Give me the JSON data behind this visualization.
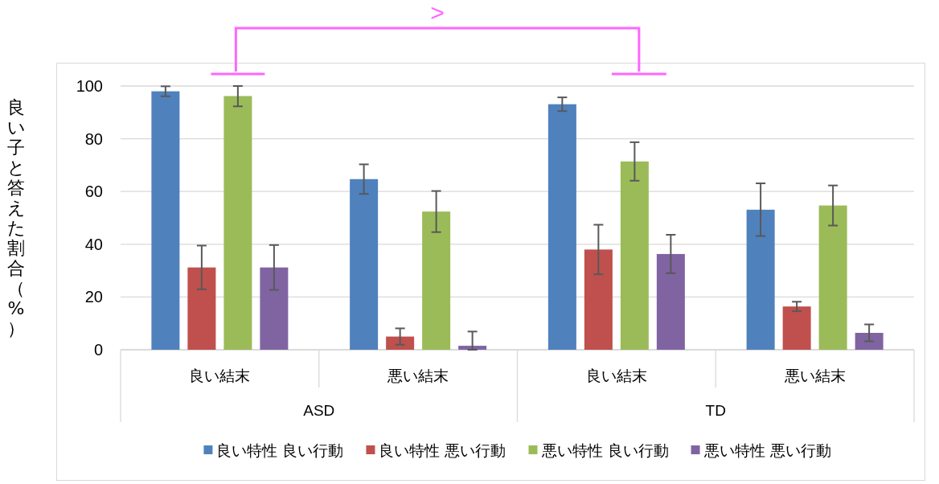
{
  "chart_data": {
    "type": "bar",
    "ylabel": "良い子と答えた割合（%）",
    "categories": [
      "良い結末",
      "悪い結末",
      "良い結末",
      "悪い結末"
    ],
    "series": [
      {
        "name": "良い特性 良い行動",
        "color": "#4f81bd",
        "values": [
          98.0,
          64.7,
          93.1,
          53.1
        ],
        "errors": [
          1.9,
          5.6,
          2.6,
          10.0
        ]
      },
      {
        "name": "良い特性 悪い行動",
        "color": "#c0504d",
        "values": [
          31.2,
          5.0,
          38.0,
          16.4
        ],
        "errors": [
          8.3,
          3.1,
          9.4,
          1.8
        ]
      },
      {
        "name": "悪い特性 良い行動",
        "color": "#9bbb59",
        "values": [
          96.2,
          52.4,
          71.4,
          54.7
        ],
        "errors": [
          [
            92.3,
            100
          ],
          7.8,
          7.3,
          7.6
        ]
      },
      {
        "name": "悪い特性 悪い行動",
        "color": "#8064a2",
        "values": [
          31.2,
          1.5,
          36.3,
          6.4
        ],
        "errors": [
          8.5,
          [
            0,
            6.9
          ],
          7.3,
          3.2
        ]
      }
    ],
    "annotations": [
      "ASD",
      "TD",
      ">"
    ],
    "ylim": [
      0,
      100
    ],
    "yticks": [
      0,
      20,
      40,
      60,
      80,
      100
    ],
    "grid": "y",
    "legend": "bottom"
  }
}
